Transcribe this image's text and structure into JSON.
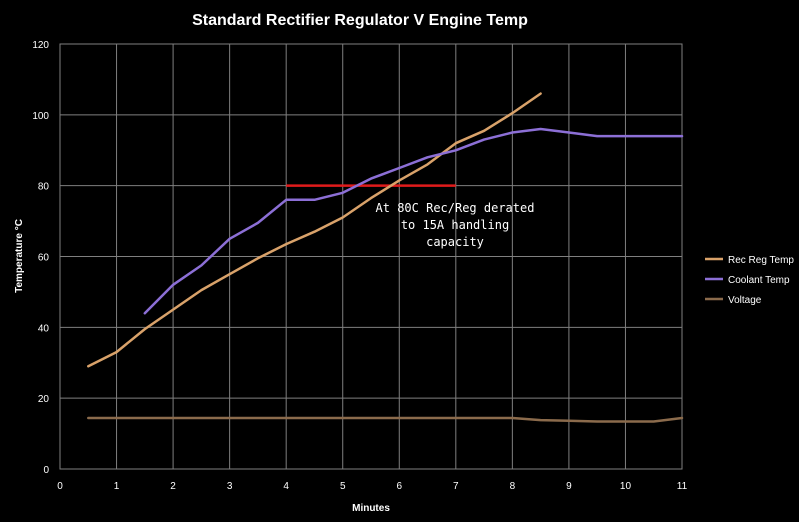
{
  "chart_data": {
    "type": "line",
    "title": "Standard Rectifier Regulator V Engine Temp",
    "xlabel": "Minutes",
    "ylabel": "Temperature °C",
    "xlim": [
      0,
      11
    ],
    "ylim": [
      0,
      120
    ],
    "xticks": [
      "0",
      "1",
      "2",
      "3",
      "4",
      "5",
      "6",
      "7",
      "8",
      "9",
      "10",
      "11"
    ],
    "yticks": [
      "0",
      "20",
      "40",
      "60",
      "80",
      "100",
      "120"
    ],
    "grid": true,
    "legend_position": "right",
    "series": [
      {
        "name": "Rec Reg Temp",
        "color": "#d9a26a",
        "x": [
          0.5,
          1,
          1.5,
          2,
          2.5,
          3,
          3.5,
          4,
          4.5,
          5,
          5.5,
          6,
          6.5,
          7,
          7.5,
          8,
          8.5
        ],
        "y": [
          29,
          33,
          39.5,
          45,
          50.5,
          55,
          59.5,
          63.5,
          67,
          71,
          76.5,
          81.5,
          86,
          92,
          95.5,
          100.5,
          106
        ]
      },
      {
        "name": "Coolant Temp",
        "color": "#8c6fd6",
        "x": [
          1.5,
          2,
          2.5,
          3,
          3.5,
          4,
          4.5,
          5,
          5.5,
          6,
          6.5,
          7,
          7.5,
          8,
          8.5,
          9,
          9.5,
          10,
          10.5,
          11
        ],
        "y": [
          44,
          52,
          57.5,
          65,
          69.5,
          76,
          76,
          78,
          82,
          85,
          88,
          90,
          93,
          95,
          96,
          95,
          94,
          94,
          94,
          94
        ]
      },
      {
        "name": "Voltage",
        "color": "#8b6b4c",
        "x": [
          0.5,
          1,
          1.5,
          2,
          2.5,
          3,
          3.5,
          4,
          4.5,
          5,
          5.5,
          6,
          6.5,
          7,
          7.5,
          8,
          8.5,
          9,
          9.5,
          10,
          10.5,
          11
        ],
        "y": [
          14.4,
          14.4,
          14.4,
          14.4,
          14.4,
          14.4,
          14.4,
          14.4,
          14.4,
          14.4,
          14.4,
          14.4,
          14.4,
          14.4,
          14.4,
          14.4,
          13.8,
          13.6,
          13.4,
          13.4,
          13.4,
          14.4
        ]
      }
    ],
    "threshold": {
      "x_start": 4,
      "x_end": 7,
      "y": 80,
      "color": "#e01b1b"
    },
    "annotation": {
      "lines": [
        "At 80C Rec/Reg derated",
        "to 15A handling",
        "capacity"
      ]
    }
  }
}
